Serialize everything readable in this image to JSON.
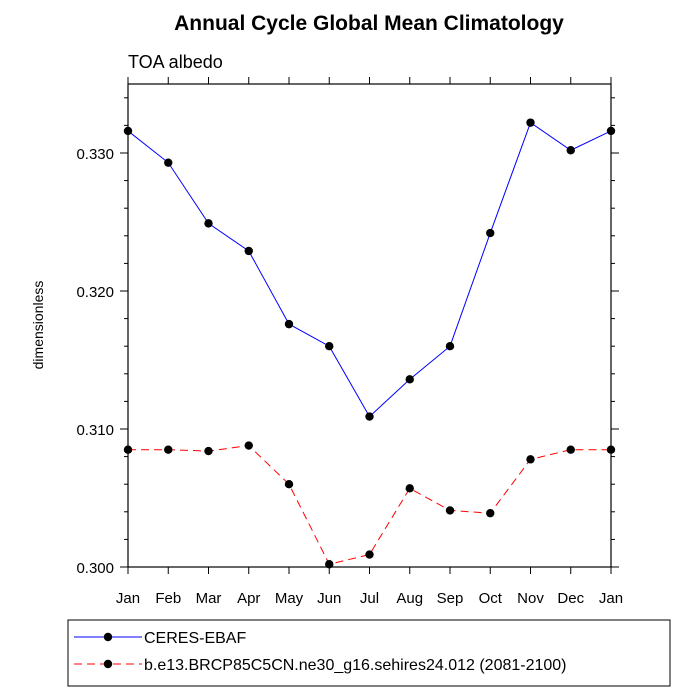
{
  "chart_data": {
    "type": "line",
    "title": "Annual Cycle Global Mean Climatology",
    "subtitle": "TOA albedo",
    "ylabel": "dimensionless",
    "xlabel": "",
    "categories": [
      "Jan",
      "Feb",
      "Mar",
      "Apr",
      "May",
      "Jun",
      "Jul",
      "Aug",
      "Sep",
      "Oct",
      "Nov",
      "Dec",
      "Jan"
    ],
    "ylim": [
      0.3,
      0.335
    ],
    "yticks": [
      0.3,
      0.31,
      0.32,
      0.33
    ],
    "ytick_labels": [
      "0.300",
      "0.310",
      "0.320",
      "0.330"
    ],
    "grid": false,
    "legend_position": "bottom",
    "series": [
      {
        "name": "CERES-EBAF",
        "color": "#0000ff",
        "dash": "solid",
        "values": [
          0.3316,
          0.3293,
          0.3249,
          0.3229,
          0.3176,
          0.316,
          0.3109,
          0.3136,
          0.316,
          0.3242,
          0.3322,
          0.3302,
          0.3316
        ]
      },
      {
        "name": "b.e13.BRCP85C5CN.ne30_g16.sehires24.012 (2081-2100)",
        "color": "#ff0000",
        "dash": "dashed",
        "values": [
          0.3085,
          0.3085,
          0.3084,
          0.3088,
          0.306,
          0.3002,
          0.3009,
          0.3057,
          0.3041,
          0.3039,
          0.3078,
          0.3085,
          0.3085
        ]
      }
    ]
  }
}
